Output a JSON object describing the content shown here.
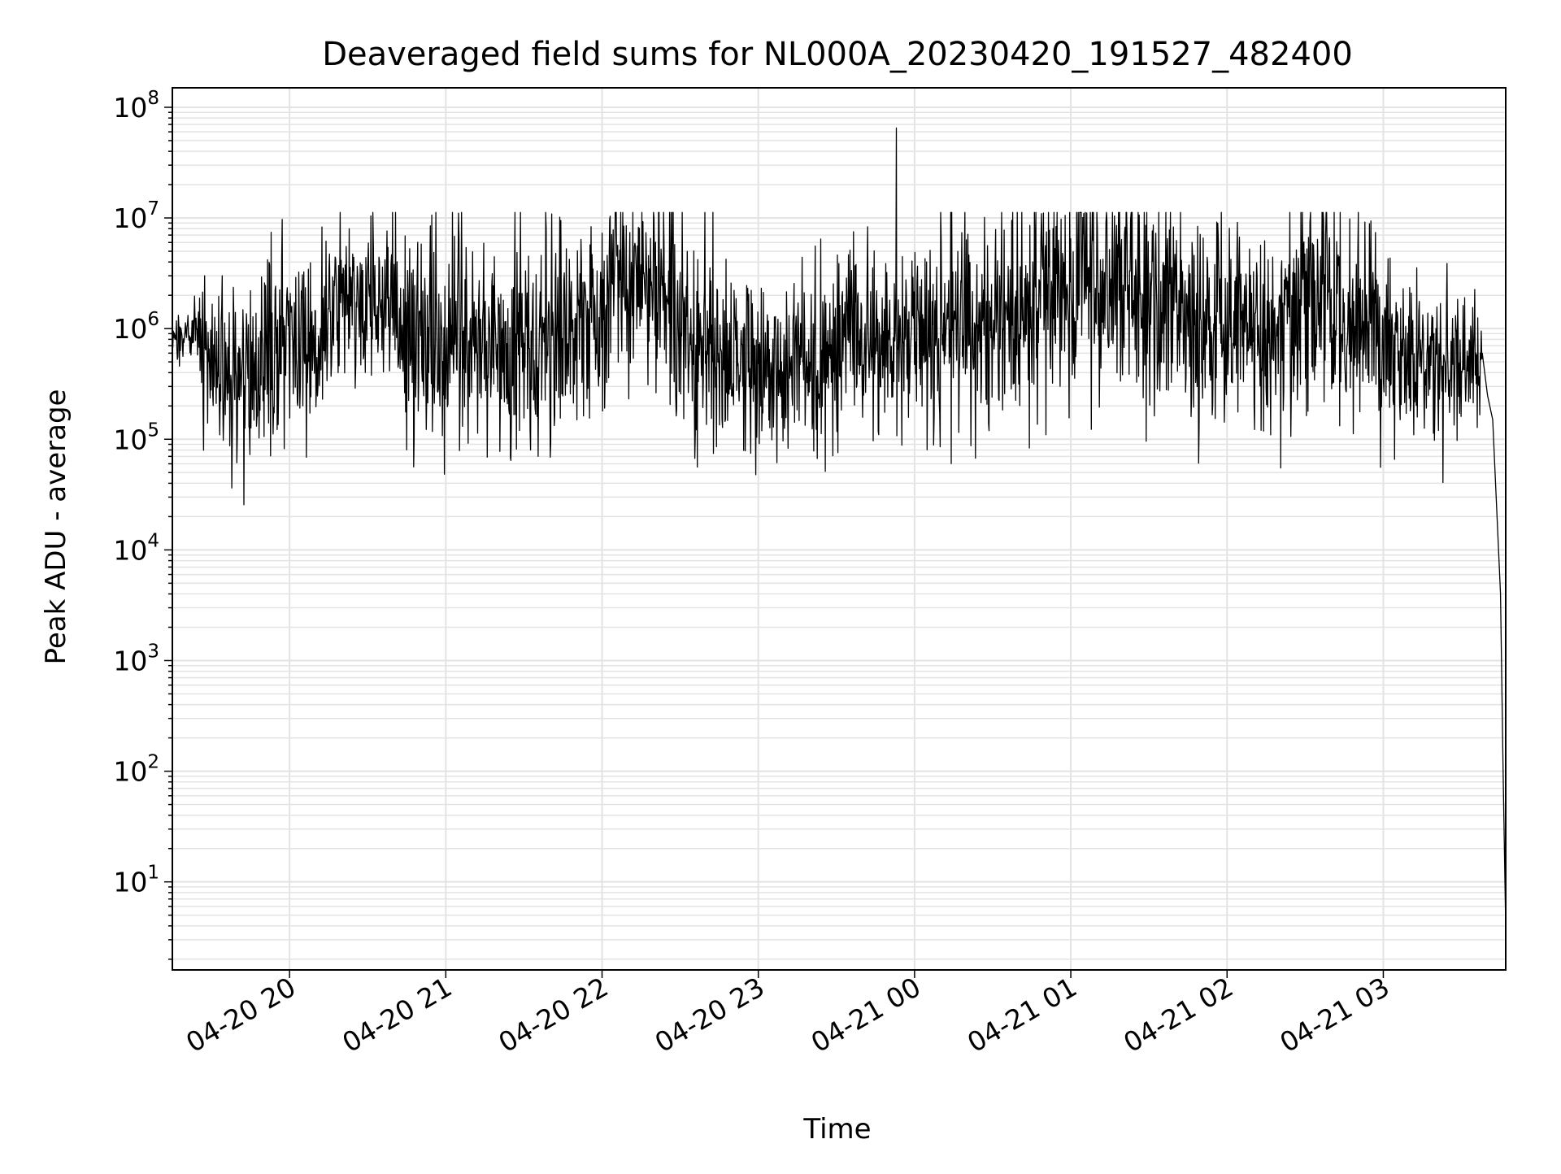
{
  "chart_data": {
    "type": "line",
    "title": "Deaveraged field sums for NL000A_20230420_191527_482400",
    "xlabel": "Time",
    "ylabel": "Peak ADU - average",
    "yscale": "log",
    "xlim": [
      "2023-04-20 19:15",
      "2023-04-21 03:47"
    ],
    "ylim": [
      1.6,
      150000000
    ],
    "grid": {
      "major": true,
      "minor": true,
      "axis": "both"
    },
    "legend": "none",
    "colors": {
      "line": "#000000",
      "grid": "#e3e3e3",
      "axes": "#000000",
      "background": "#ffffff"
    },
    "x_ticks": [
      {
        "t": "2023-04-20 20:00",
        "label": "04-20 20"
      },
      {
        "t": "2023-04-20 21:00",
        "label": "04-20 21"
      },
      {
        "t": "2023-04-20 22:00",
        "label": "04-20 22"
      },
      {
        "t": "2023-04-20 23:00",
        "label": "04-20 23"
      },
      {
        "t": "2023-04-21 00:00",
        "label": "04-21 00"
      },
      {
        "t": "2023-04-21 01:00",
        "label": "04-21 01"
      },
      {
        "t": "2023-04-21 02:00",
        "label": "04-21 02"
      },
      {
        "t": "2023-04-21 03:00",
        "label": "04-21 03"
      }
    ],
    "y_ticks": [
      {
        "value": 10,
        "base": "10",
        "exp": "1"
      },
      {
        "value": 100,
        "base": "10",
        "exp": "2"
      },
      {
        "value": 1000,
        "base": "10",
        "exp": "3"
      },
      {
        "value": 10000,
        "base": "10",
        "exp": "4"
      },
      {
        "value": 100000,
        "base": "10",
        "exp": "5"
      },
      {
        "value": 1000000,
        "base": "10",
        "exp": "6"
      },
      {
        "value": 10000000,
        "base": "10",
        "exp": "7"
      },
      {
        "value": 100000000,
        "base": "10",
        "exp": "8"
      }
    ],
    "series": [
      {
        "style": "noisy envelope",
        "envelope": [
          {
            "t": "2023-04-20 19:15",
            "center": 800000,
            "spread_log10": 0.12
          },
          {
            "t": "2023-04-20 19:25",
            "center": 900000,
            "spread_log10": 0.12
          },
          {
            "t": "2023-04-20 19:28",
            "center": 450000,
            "spread_log10": 0.35
          },
          {
            "t": "2023-04-20 19:40",
            "center": 400000,
            "spread_log10": 0.4
          },
          {
            "t": "2023-04-20 19:55",
            "center": 700000,
            "spread_log10": 0.4
          },
          {
            "t": "2023-04-20 20:15",
            "center": 1100000,
            "spread_log10": 0.4
          },
          {
            "t": "2023-04-20 20:25",
            "center": 2000000,
            "spread_log10": 0.4
          },
          {
            "t": "2023-04-20 20:35",
            "center": 2200000,
            "spread_log10": 0.35
          },
          {
            "t": "2023-04-20 20:45",
            "center": 800000,
            "spread_log10": 0.45
          },
          {
            "t": "2023-04-20 21:15",
            "center": 600000,
            "spread_log10": 0.45
          },
          {
            "t": "2023-04-20 21:45",
            "center": 900000,
            "spread_log10": 0.45
          },
          {
            "t": "2023-04-20 22:10",
            "center": 2000000,
            "spread_log10": 0.5
          },
          {
            "t": "2023-04-20 22:25",
            "center": 2200000,
            "spread_log10": 0.5
          },
          {
            "t": "2023-04-20 22:35",
            "center": 600000,
            "spread_log10": 0.45
          },
          {
            "t": "2023-04-20 23:00",
            "center": 400000,
            "spread_log10": 0.4
          },
          {
            "t": "2023-04-20 23:30",
            "center": 600000,
            "spread_log10": 0.4
          },
          {
            "t": "2023-04-21 00:00",
            "center": 800000,
            "spread_log10": 0.45
          },
          {
            "t": "2023-04-21 00:30",
            "center": 1000000,
            "spread_log10": 0.5
          },
          {
            "t": "2023-04-21 00:50",
            "center": 2000000,
            "spread_log10": 0.55
          },
          {
            "t": "2023-04-21 01:20",
            "center": 2000000,
            "spread_log10": 0.55
          },
          {
            "t": "2023-04-21 01:45",
            "center": 1000000,
            "spread_log10": 0.45
          },
          {
            "t": "2023-04-21 02:15",
            "center": 900000,
            "spread_log10": 0.45
          },
          {
            "t": "2023-04-21 02:35",
            "center": 1800000,
            "spread_log10": 0.5
          },
          {
            "t": "2023-04-21 02:50",
            "center": 900000,
            "spread_log10": 0.45
          },
          {
            "t": "2023-04-21 03:20",
            "center": 500000,
            "spread_log10": 0.35
          },
          {
            "t": "2023-04-21 03:38",
            "center": 550000,
            "spread_log10": 0.3
          }
        ],
        "spikes": [
          {
            "t": "2023-04-20 20:23",
            "y": 8000000
          },
          {
            "t": "2023-04-20 22:20",
            "y": 10000000
          },
          {
            "t": "2023-04-20 23:53",
            "y": 65000000
          },
          {
            "t": "2023-04-21 01:05",
            "y": 11000000
          },
          {
            "t": "2023-04-21 02:37",
            "y": 9500000
          }
        ],
        "tail": [
          {
            "t": "2023-04-21 03:38",
            "y": 600000
          },
          {
            "t": "2023-04-21 03:40",
            "y": 250000
          },
          {
            "t": "2023-04-21 03:42",
            "y": 150000
          },
          {
            "t": "2023-04-21 03:45",
            "y": 4000
          },
          {
            "t": "2023-04-21 03:46",
            "y": 100
          },
          {
            "t": "2023-04-21 03:47",
            "y": 3.8
          }
        ]
      }
    ]
  }
}
